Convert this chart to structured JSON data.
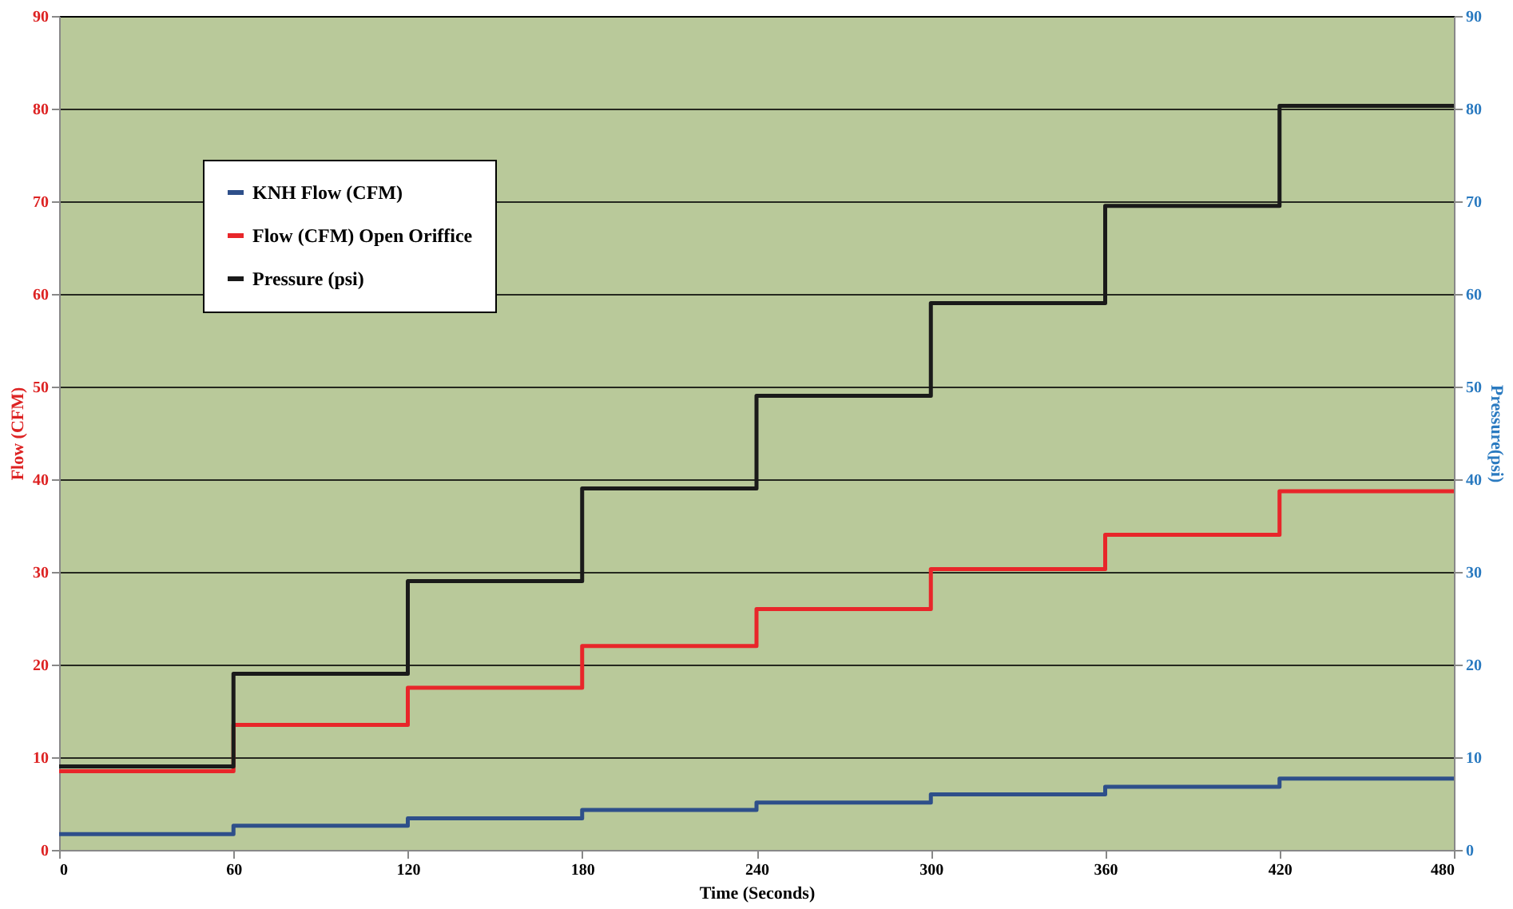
{
  "chart_data": {
    "type": "step",
    "xlabel": "Time (Seconds)",
    "ylabel": "Flow (CFM)",
    "y2label": "Pressure(psi)",
    "x": [
      0,
      60,
      120,
      180,
      240,
      300,
      360,
      420,
      480
    ],
    "series": [
      {
        "name": "KNH Flow (CFM)",
        "color": "#2e4f8a",
        "values": [
          1.7,
          2.6,
          3.4,
          4.3,
          5.1,
          6.0,
          6.8,
          7.7,
          7.7
        ]
      },
      {
        "name": "Flow (CFM) Open Oriffice",
        "color": "#e8262a",
        "values": [
          8.5,
          13.5,
          17.5,
          22,
          26,
          30.3,
          34,
          38.7,
          38.7
        ]
      },
      {
        "name": "Pressure (psi)",
        "color": "#1a1a1a",
        "axis": "y2",
        "values": [
          9,
          19,
          29,
          39,
          49,
          59,
          69.5,
          80.3,
          80.3
        ]
      }
    ],
    "xlim": [
      0,
      480
    ],
    "xticks": [
      0,
      60,
      120,
      180,
      240,
      300,
      360,
      420,
      480
    ],
    "ylim": [
      0,
      90
    ],
    "yticks": [
      0,
      10,
      20,
      30,
      40,
      50,
      60,
      70,
      80,
      90
    ],
    "y2lim": [
      0,
      90
    ],
    "y2ticks": [
      0,
      10,
      20,
      30,
      40,
      50,
      60,
      70,
      80,
      90
    ],
    "grid": "y",
    "legend": "top left",
    "line_style": "solid"
  }
}
